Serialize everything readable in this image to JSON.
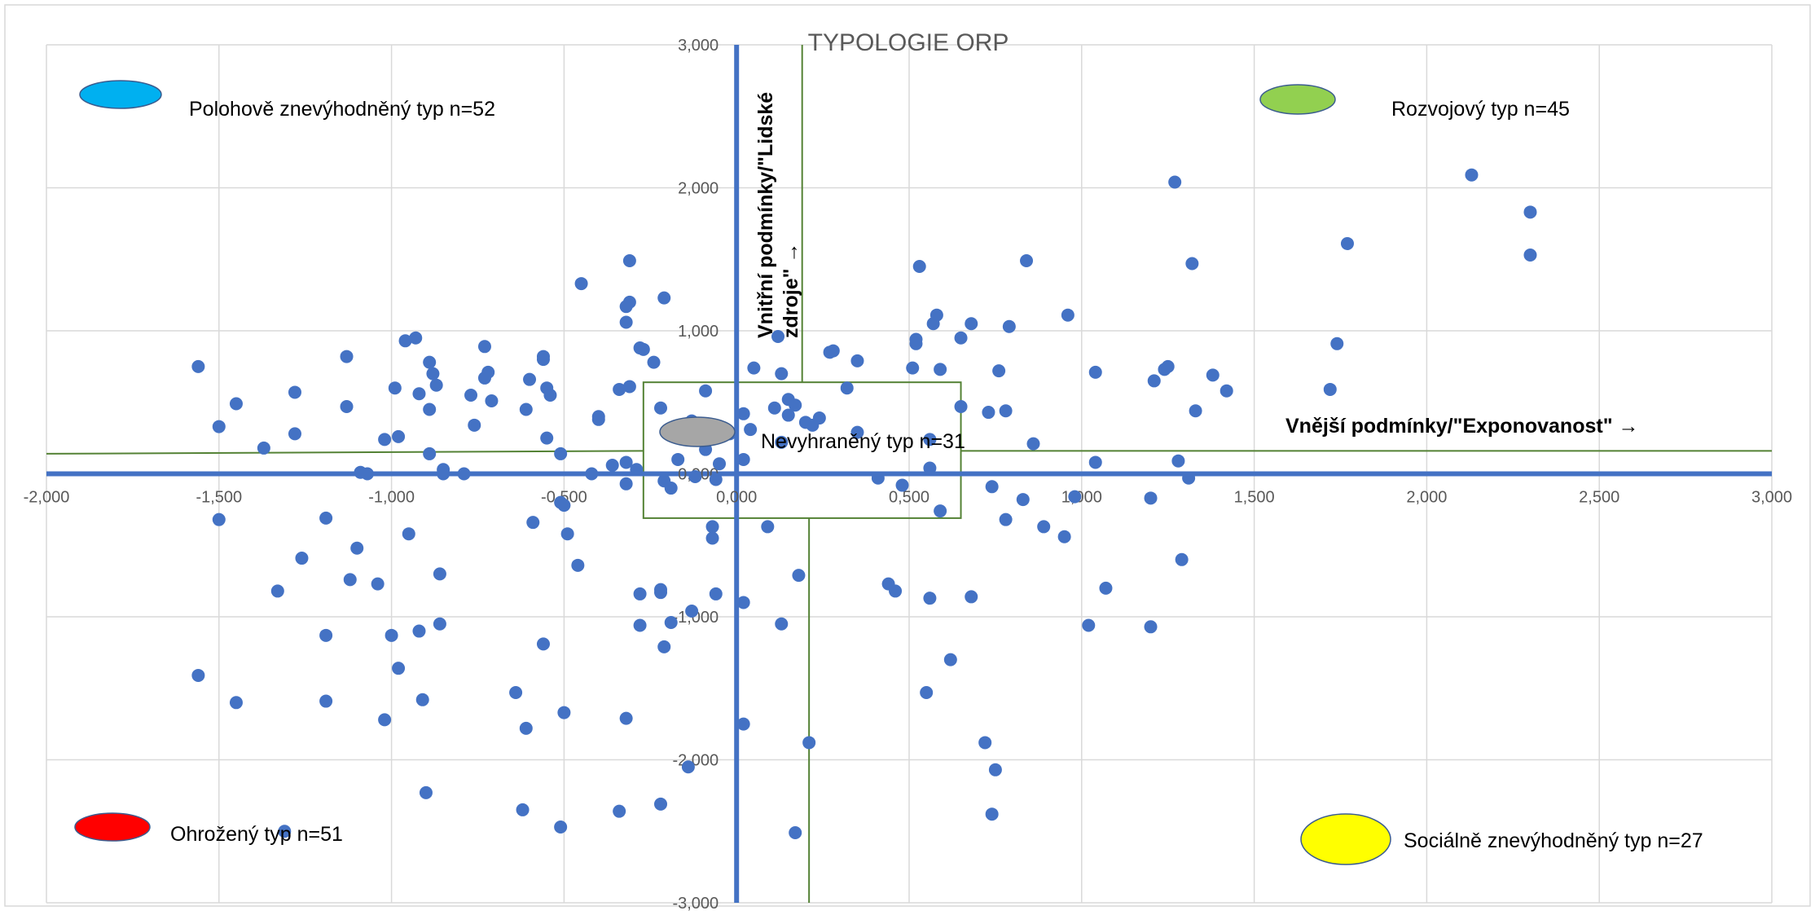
{
  "chart_data": {
    "type": "scatter",
    "title": "TYPOLOGIE ORP",
    "xlabel": "Vnější podmínky/\"Exponovanost\" →",
    "ylabel_lines": [
      "Vnitřní podmínky/\"Lidské",
      "zdroje\" →"
    ],
    "xlim": [
      -2,
      3
    ],
    "ylim": [
      -3,
      3
    ],
    "grid": true,
    "x_ticks": [
      "-2,000",
      "-1,500",
      "-1,000",
      "-0,500",
      "0,000",
      "0,500",
      "1,000",
      "1,500",
      "2,000",
      "2,500",
      "3,000"
    ],
    "y_ticks": [
      "-3,000",
      "-2,000",
      "-1,000",
      "0,000",
      "1,000",
      "2,000",
      "3,000"
    ],
    "point_color": "#4472C4",
    "axis_color": "#4472C4",
    "divider_color": "#548235",
    "dividers": {
      "horizontal_line": [
        [
          -2,
          0.16
        ],
        [
          3,
          0.16
        ]
      ],
      "vertical_line": [
        [
          0.19,
          3
        ],
        [
          0.21,
          -3
        ]
      ],
      "center_box": {
        "x": [
          -0.27,
          0.65
        ],
        "y": [
          -0.31,
          0.64
        ]
      }
    },
    "legend": [
      {
        "label": "Polohově znevýhodněný typ n=52",
        "color": "#00B0F0",
        "position": "top-left"
      },
      {
        "label": "Rozvojový typ n=45",
        "color": "#92D050",
        "position": "top-right"
      },
      {
        "label": "Nevyhraněný typ n=31",
        "color": "#A6A6A6",
        "position": "center"
      },
      {
        "label": "Ohrožený typ n=51",
        "color": "#FF0000",
        "position": "bottom-left"
      },
      {
        "label": "Sociálně znevýhodněný typ n=27",
        "color": "#FFFF00",
        "position": "bottom-right"
      }
    ],
    "points": [
      [
        -1.56,
        0.75
      ],
      [
        -1.5,
        0.33
      ],
      [
        -1.45,
        0.49
      ],
      [
        -1.37,
        0.18
      ],
      [
        -1.28,
        0.57
      ],
      [
        -1.28,
        0.28
      ],
      [
        -1.13,
        0.82
      ],
      [
        -1.13,
        0.47
      ],
      [
        -1.09,
        0.01
      ],
      [
        -1.07,
        0.0
      ],
      [
        -1.02,
        0.24
      ],
      [
        -0.99,
        0.6
      ],
      [
        -0.98,
        0.26
      ],
      [
        -0.96,
        0.93
      ],
      [
        -0.93,
        0.95
      ],
      [
        -0.92,
        0.56
      ],
      [
        -0.89,
        0.78
      ],
      [
        -0.89,
        0.45
      ],
      [
        -0.88,
        0.7
      ],
      [
        -0.87,
        0.62
      ],
      [
        -0.85,
        0.03
      ],
      [
        -0.89,
        0.14
      ],
      [
        -0.79,
        0.0
      ],
      [
        -0.77,
        0.55
      ],
      [
        -0.76,
        0.34
      ],
      [
        -0.73,
        0.89
      ],
      [
        -0.72,
        0.71
      ],
      [
        -0.71,
        0.51
      ],
      [
        -0.73,
        0.67
      ],
      [
        -0.6,
        0.66
      ],
      [
        -0.61,
        0.45
      ],
      [
        -0.56,
        0.8
      ],
      [
        -0.56,
        0.82
      ],
      [
        -0.55,
        0.6
      ],
      [
        -0.54,
        0.55
      ],
      [
        -0.55,
        0.25
      ],
      [
        -0.51,
        0.14
      ],
      [
        -0.45,
        1.33
      ],
      [
        -0.42,
        0.0
      ],
      [
        -0.4,
        0.38
      ],
      [
        -0.4,
        0.4
      ],
      [
        -0.36,
        0.06
      ],
      [
        -0.34,
        0.59
      ],
      [
        -0.32,
        1.17
      ],
      [
        -0.32,
        1.06
      ],
      [
        -0.31,
        1.2
      ],
      [
        -0.31,
        1.49
      ],
      [
        -0.31,
        0.61
      ],
      [
        -0.28,
        0.88
      ],
      [
        -0.27,
        0.87
      ],
      [
        -0.24,
        0.78
      ],
      [
        -0.22,
        0.46
      ],
      [
        -0.32,
        0.08
      ],
      [
        -0.29,
        0.03
      ],
      [
        -0.21,
        1.23
      ],
      [
        -0.17,
        0.1
      ],
      [
        -0.13,
        0.37
      ],
      [
        -0.09,
        0.17
      ],
      [
        -0.09,
        0.58
      ],
      [
        -0.02,
        0.28
      ],
      [
        0.02,
        0.42
      ],
      [
        0.04,
        0.31
      ],
      [
        0.05,
        0.74
      ],
      [
        0.11,
        0.46
      ],
      [
        0.12,
        0.96
      ],
      [
        0.13,
        0.22
      ],
      [
        0.15,
        0.52
      ],
      [
        0.17,
        0.48
      ],
      [
        0.15,
        0.41
      ],
      [
        0.13,
        0.7
      ],
      [
        0.2,
        0.36
      ],
      [
        0.22,
        0.34
      ],
      [
        0.24,
        0.39
      ],
      [
        0.27,
        0.85
      ],
      [
        0.28,
        0.86
      ],
      [
        0.32,
        0.6
      ],
      [
        0.35,
        0.79
      ],
      [
        0.35,
        0.29
      ],
      [
        -0.19,
        -0.1
      ],
      [
        -0.12,
        -0.02
      ],
      [
        -0.05,
        0.07
      ],
      [
        0.02,
        0.1
      ],
      [
        0.41,
        -0.03
      ],
      [
        0.48,
        -0.08
      ],
      [
        0.51,
        0.74
      ],
      [
        0.52,
        0.91
      ],
      [
        0.52,
        0.94
      ],
      [
        0.53,
        1.45
      ],
      [
        0.56,
        0.24
      ],
      [
        0.57,
        1.05
      ],
      [
        0.58,
        1.11
      ],
      [
        0.59,
        0.73
      ],
      [
        0.56,
        0.04
      ],
      [
        0.59,
        -0.26
      ],
      [
        0.65,
        0.47
      ],
      [
        0.65,
        0.95
      ],
      [
        0.68,
        1.05
      ],
      [
        0.73,
        0.43
      ],
      [
        0.76,
        0.72
      ],
      [
        0.79,
        1.03
      ],
      [
        0.78,
        0.44
      ],
      [
        0.84,
        1.49
      ],
      [
        0.86,
        0.21
      ],
      [
        0.96,
        1.11
      ],
      [
        1.04,
        0.71
      ],
      [
        1.04,
        0.08
      ],
      [
        1.21,
        0.65
      ],
      [
        1.24,
        0.73
      ],
      [
        1.25,
        0.75
      ],
      [
        1.27,
        2.04
      ],
      [
        1.28,
        0.09
      ],
      [
        1.32,
        1.47
      ],
      [
        1.33,
        0.44
      ],
      [
        1.38,
        0.69
      ],
      [
        1.42,
        0.58
      ],
      [
        1.31,
        -0.03
      ],
      [
        1.72,
        0.59
      ],
      [
        1.74,
        0.91
      ],
      [
        1.77,
        1.61
      ],
      [
        2.13,
        2.09
      ],
      [
        2.3,
        1.83
      ],
      [
        2.3,
        1.53
      ],
      [
        -1.5,
        -0.32
      ],
      [
        -1.33,
        -0.82
      ],
      [
        -1.26,
        -0.59
      ],
      [
        -1.19,
        -0.31
      ],
      [
        -1.12,
        -0.74
      ],
      [
        -1.1,
        -0.52
      ],
      [
        -1.04,
        -0.77
      ],
      [
        -0.95,
        -0.42
      ],
      [
        -0.86,
        -0.7
      ],
      [
        -0.85,
        0.0
      ],
      [
        -0.59,
        -0.34
      ],
      [
        -0.51,
        -0.2
      ],
      [
        -0.5,
        -0.22
      ],
      [
        -0.46,
        -0.64
      ],
      [
        -0.49,
        -0.42
      ],
      [
        -0.32,
        -0.07
      ],
      [
        -0.21,
        -0.05
      ],
      [
        -0.28,
        -0.84
      ],
      [
        -0.22,
        -0.83
      ],
      [
        -0.22,
        -0.81
      ],
      [
        -0.19,
        -1.04
      ],
      [
        -0.13,
        -0.96
      ],
      [
        -0.07,
        -0.37
      ],
      [
        -0.07,
        -0.45
      ],
      [
        -0.06,
        -0.04
      ],
      [
        -0.06,
        -0.84
      ],
      [
        0.02,
        -0.9
      ],
      [
        0.09,
        -0.37
      ],
      [
        0.13,
        -1.05
      ],
      [
        0.18,
        -0.71
      ],
      [
        0.44,
        -0.77
      ],
      [
        0.46,
        -0.82
      ],
      [
        0.56,
        -0.87
      ],
      [
        0.68,
        -0.86
      ],
      [
        0.74,
        -0.09
      ],
      [
        0.78,
        -0.32
      ],
      [
        0.83,
        -0.18
      ],
      [
        0.89,
        -0.37
      ],
      [
        0.95,
        -0.44
      ],
      [
        0.98,
        -0.16
      ],
      [
        1.02,
        -1.06
      ],
      [
        1.07,
        -0.8
      ],
      [
        1.2,
        -0.17
      ],
      [
        1.2,
        -1.07
      ],
      [
        1.29,
        -0.6
      ],
      [
        -1.56,
        -1.41
      ],
      [
        -1.45,
        -1.6
      ],
      [
        -1.19,
        -1.13
      ],
      [
        -1.19,
        -1.59
      ],
      [
        -1.02,
        -1.72
      ],
      [
        -1.0,
        -1.13
      ],
      [
        -0.98,
        -1.36
      ],
      [
        -0.92,
        -1.1
      ],
      [
        -0.91,
        -1.58
      ],
      [
        -0.86,
        -1.05
      ],
      [
        -0.64,
        -1.53
      ],
      [
        -0.61,
        -1.78
      ],
      [
        -0.56,
        -1.19
      ],
      [
        -0.5,
        -1.67
      ],
      [
        -0.32,
        -1.71
      ],
      [
        -0.21,
        -1.21
      ],
      [
        -0.28,
        -1.06
      ],
      [
        -0.9,
        -2.23
      ],
      [
        -0.62,
        -2.35
      ],
      [
        -0.51,
        -2.47
      ],
      [
        -0.34,
        -2.36
      ],
      [
        -0.22,
        -2.31
      ],
      [
        -0.14,
        -2.05
      ],
      [
        0.02,
        -1.75
      ],
      [
        0.17,
        -2.51
      ],
      [
        0.21,
        -1.88
      ],
      [
        0.55,
        -1.53
      ],
      [
        0.62,
        -1.3
      ],
      [
        0.72,
        -1.88
      ],
      [
        0.75,
        -2.07
      ],
      [
        0.74,
        -2.38
      ],
      [
        -1.31,
        -2.5
      ]
    ]
  }
}
